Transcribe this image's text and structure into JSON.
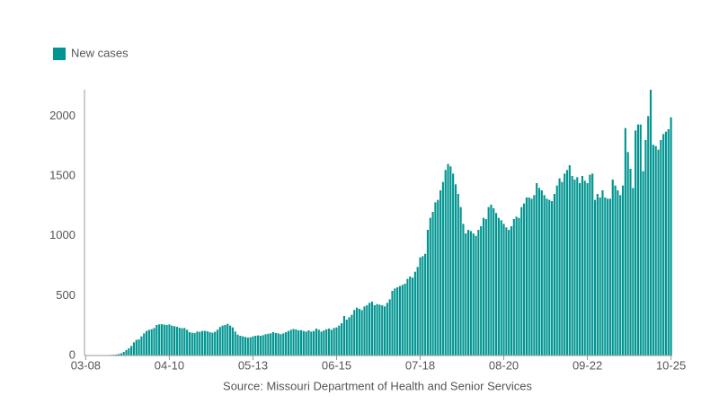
{
  "chart_data": {
    "type": "bar",
    "series": [
      {
        "name": "New cases",
        "color": "#009591",
        "values": [
          0,
          0,
          0,
          0,
          0,
          1,
          1,
          2,
          3,
          3,
          5,
          6,
          8,
          12,
          18,
          30,
          45,
          60,
          80,
          110,
          130,
          135,
          160,
          185,
          205,
          215,
          220,
          230,
          255,
          260,
          262,
          258,
          255,
          260,
          250,
          245,
          240,
          232,
          228,
          230,
          215,
          195,
          190,
          188,
          200,
          198,
          205,
          206,
          203,
          195,
          190,
          198,
          215,
          238,
          250,
          255,
          265,
          250,
          235,
          200,
          175,
          165,
          160,
          155,
          150,
          152,
          160,
          165,
          168,
          165,
          170,
          178,
          182,
          185,
          195,
          188,
          185,
          178,
          185,
          195,
          205,
          215,
          222,
          218,
          210,
          212,
          205,
          200,
          210,
          200,
          205,
          225,
          215,
          200,
          210,
          220,
          225,
          215,
          230,
          235,
          250,
          270,
          330,
          300,
          320,
          340,
          380,
          400,
          390,
          380,
          410,
          420,
          440,
          450,
          420,
          430,
          425,
          420,
          410,
          440,
          470,
          540,
          560,
          570,
          580,
          590,
          600,
          640,
          660,
          650,
          700,
          740,
          820,
          830,
          850,
          1050,
          1150,
          1200,
          1280,
          1300,
          1380,
          1450,
          1550,
          1600,
          1580,
          1520,
          1430,
          1350,
          1240,
          1100,
          1020,
          1050,
          1040,
          1020,
          1000,
          1050,
          1080,
          1150,
          1140,
          1240,
          1260,
          1230,
          1190,
          1150,
          1130,
          1100,
          1070,
          1050,
          1080,
          1140,
          1160,
          1150,
          1240,
          1270,
          1320,
          1320,
          1310,
          1340,
          1440,
          1400,
          1380,
          1340,
          1310,
          1300,
          1290,
          1350,
          1420,
          1480,
          1450,
          1520,
          1550,
          1590,
          1500,
          1470,
          1490,
          1440,
          1500,
          1460,
          1440,
          1510,
          1520,
          1300,
          1350,
          1320,
          1380,
          1320,
          1310,
          1310,
          1470,
          1420,
          1380,
          1340,
          1420,
          1900,
          1700,
          1560,
          1400,
          1880,
          1930,
          1930,
          1540,
          1800,
          2000,
          2220,
          1760,
          1750,
          1720,
          1800,
          1850,
          1870,
          1890,
          1990
        ]
      }
    ],
    "categories": [
      "03-08",
      null,
      null,
      null,
      null,
      null,
      null,
      null,
      null,
      null,
      null,
      null,
      null,
      null,
      null,
      null,
      null,
      null,
      null,
      null,
      null,
      null,
      null,
      null,
      null,
      null,
      null,
      null,
      null,
      null,
      null,
      null,
      null,
      "04-10",
      null,
      null,
      null,
      null,
      null,
      null,
      null,
      null,
      null,
      null,
      null,
      null,
      null,
      null,
      null,
      null,
      null,
      null,
      null,
      null,
      null,
      null,
      null,
      null,
      null,
      null,
      null,
      null,
      null,
      null,
      null,
      null,
      "05-13",
      null,
      null,
      null,
      null,
      null,
      null,
      null,
      null,
      null,
      null,
      null,
      null,
      null,
      null,
      null,
      null,
      null,
      null,
      null,
      null,
      null,
      null,
      null,
      null,
      null,
      null,
      null,
      null,
      null,
      null,
      null,
      null,
      "06-15",
      null,
      null,
      null,
      null,
      null,
      null,
      null,
      null,
      null,
      null,
      null,
      null,
      null,
      null,
      null,
      null,
      null,
      null,
      null,
      null,
      null,
      null,
      null,
      null,
      null,
      null,
      null,
      null,
      null,
      null,
      null,
      null,
      "07-18",
      null,
      null,
      null,
      null,
      null,
      null,
      null,
      null,
      null,
      null,
      null,
      null,
      null,
      null,
      null,
      null,
      null,
      null,
      null,
      null,
      null,
      null,
      null,
      null,
      null,
      null,
      null,
      null,
      null,
      null,
      null,
      null,
      "08-20",
      null,
      null,
      null,
      null,
      null,
      null,
      null,
      null,
      null,
      null,
      null,
      null,
      null,
      null,
      null,
      null,
      null,
      null,
      null,
      null,
      null,
      null,
      null,
      null,
      null,
      null,
      null,
      null,
      null,
      null,
      null,
      null,
      "09-22",
      null,
      null,
      null,
      null,
      null,
      null,
      null,
      null,
      null,
      null,
      null,
      null,
      null,
      null,
      null,
      null,
      null,
      null,
      null,
      null,
      null,
      null,
      null,
      null,
      null,
      null,
      null,
      null,
      null,
      null,
      null,
      null,
      "10-25"
    ],
    "ylim": [
      0,
      2220
    ],
    "yticks": [
      0,
      500,
      1000,
      1500,
      2000
    ],
    "grid": false,
    "legend": "top-left",
    "source": "Source: Missouri Department of Health and Senior Services"
  }
}
